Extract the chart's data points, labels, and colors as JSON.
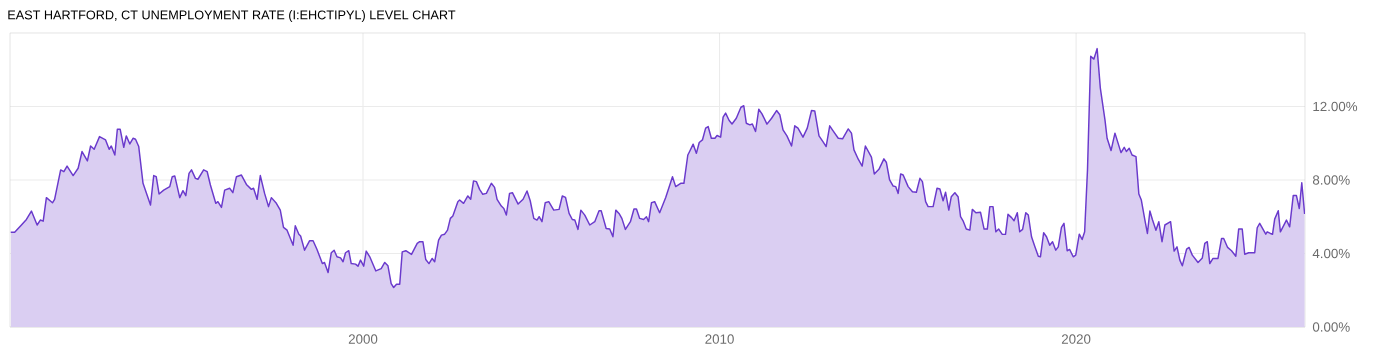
{
  "chart_data": {
    "type": "area",
    "title": "EAST HARTFORD, CT UNEMPLOYMENT RATE (I:EHCTIPYL) LEVEL CHART",
    "xlim": [
      1990.1,
      2026.42
    ],
    "xticks": [
      2000,
      2010,
      2020
    ],
    "ylim": [
      0,
      16
    ],
    "yticks": [
      {
        "value": 0,
        "label": "0.00%"
      },
      {
        "value": 4,
        "label": "4.00%"
      },
      {
        "value": 8,
        "label": "8.00%"
      },
      {
        "value": 12,
        "label": "12.00%"
      }
    ],
    "grid": true,
    "series": [
      {
        "color": "#6a3acc",
        "x": [
          1990.12,
          1990.23,
          1990.42,
          1990.56,
          1990.7,
          1990.86,
          1990.95,
          1991.03,
          1991.12,
          1991.29,
          1991.35,
          1991.52,
          1991.61,
          1991.7,
          1991.87,
          1992.01,
          1992.12,
          1992.27,
          1992.36,
          1992.46,
          1992.61,
          1992.78,
          1992.88,
          1992.94,
          1993.04,
          1993.11,
          1993.19,
          1993.29,
          1993.36,
          1993.46,
          1993.55,
          1993.62,
          1993.71,
          1993.83,
          1994.04,
          1994.13,
          1994.2,
          1994.28,
          1994.41,
          1994.58,
          1994.65,
          1994.72,
          1994.86,
          1994.95,
          1995.03,
          1995.12,
          1995.19,
          1995.3,
          1995.37,
          1995.53,
          1995.63,
          1995.72,
          1995.87,
          1995.93,
          1996.03,
          1996.12,
          1996.26,
          1996.35,
          1996.45,
          1996.59,
          1996.73,
          1996.87,
          1996.93,
          1997.03,
          1997.12,
          1997.24,
          1997.35,
          1997.43,
          1997.57,
          1997.68,
          1997.77,
          1997.87,
          1998.04,
          1998.1,
          1998.2,
          1998.25,
          1998.36,
          1998.5,
          1998.6,
          1998.71,
          1998.86,
          1998.92,
          1999.02,
          1999.11,
          1999.19,
          1999.27,
          1999.37,
          1999.44,
          1999.51,
          1999.6,
          1999.67,
          1999.79,
          1999.86,
          1999.93,
          2000.02,
          2000.09,
          2000.19,
          2000.36,
          2000.51,
          2000.61,
          2000.7,
          2000.79,
          2000.86,
          2000.94,
          2001.03,
          2001.1,
          2001.2,
          2001.36,
          2001.52,
          2001.59,
          2001.68,
          2001.76,
          2001.85,
          2001.94,
          2002.01,
          2002.12,
          2002.2,
          2002.29,
          2002.37,
          2002.45,
          2002.52,
          2002.66,
          2002.71,
          2002.82,
          2002.94,
          2003.02,
          2003.1,
          2003.18,
          2003.27,
          2003.36,
          2003.46,
          2003.6,
          2003.69,
          2003.76,
          2003.88,
          2003.95,
          2004.02,
          2004.11,
          2004.19,
          2004.35,
          2004.49,
          2004.6,
          2004.69,
          2004.79,
          2004.88,
          2004.94,
          2005.02,
          2005.11,
          2005.21,
          2005.35,
          2005.5,
          2005.59,
          2005.68,
          2005.78,
          2005.87,
          2005.94,
          2006.03,
          2006.11,
          2006.22,
          2006.36,
          2006.5,
          2006.62,
          2006.68,
          2006.82,
          2006.92,
          2007.01,
          2007.09,
          2007.18,
          2007.26,
          2007.36,
          2007.5,
          2007.6,
          2007.67,
          2007.76,
          2007.87,
          2007.95,
          2008.01,
          2008.09,
          2008.18,
          2008.32,
          2008.49,
          2008.68,
          2008.77,
          2008.91,
          2009.0,
          2009.11,
          2009.16,
          2009.26,
          2009.35,
          2009.43,
          2009.52,
          2009.61,
          2009.68,
          2009.77,
          2009.87,
          2009.93,
          2010.03,
          2010.1,
          2010.17,
          2010.27,
          2010.35,
          2010.47,
          2010.6,
          2010.68,
          2010.75,
          2010.85,
          2010.92,
          2011.01,
          2011.1,
          2011.19,
          2011.33,
          2011.46,
          2011.6,
          2011.69,
          2011.78,
          2011.89,
          2012.02,
          2012.11,
          2012.2,
          2012.34,
          2012.46,
          2012.58,
          2012.67,
          2012.79,
          2012.9,
          2012.99,
          2013.09,
          2013.18,
          2013.33,
          2013.45,
          2013.61,
          2013.7,
          2013.77,
          2013.89,
          2014.0,
          2014.09,
          2014.26,
          2014.34,
          2014.47,
          2014.61,
          2014.68,
          2014.77,
          2014.87,
          2014.94,
          2015.01,
          2015.08,
          2015.15,
          2015.29,
          2015.41,
          2015.52,
          2015.62,
          2015.69,
          2015.78,
          2015.85,
          2015.99,
          2016.1,
          2016.18,
          2016.27,
          2016.34,
          2016.43,
          2016.5,
          2016.6,
          2016.69,
          2016.76,
          2016.83,
          2016.92,
          2017.02,
          2017.09,
          2017.19,
          2017.32,
          2017.42,
          2017.51,
          2017.58,
          2017.67,
          2017.75,
          2017.83,
          2017.93,
          2018.02,
          2018.09,
          2018.19,
          2018.26,
          2018.35,
          2018.42,
          2018.5,
          2018.59,
          2018.66,
          2018.75,
          2018.84,
          2018.94,
          2019.0,
          2019.09,
          2019.17,
          2019.26,
          2019.34,
          2019.43,
          2019.5,
          2019.59,
          2019.66,
          2019.75,
          2019.82,
          2019.92,
          2019.99,
          2020.09,
          2020.17,
          2020.24,
          2020.32,
          2020.41,
          2020.5,
          2020.59,
          2020.68,
          2020.81,
          2020.87,
          2020.98,
          2021.09,
          2021.26,
          2021.35,
          2021.41,
          2021.49,
          2021.57,
          2021.68,
          2021.76,
          2021.83,
          2021.93,
          2022.0,
          2022.07,
          2022.14,
          2022.24,
          2022.32,
          2022.41,
          2022.49,
          2022.65,
          2022.75,
          2022.83,
          2022.91,
          2022.98,
          2023.1,
          2023.17,
          2023.26,
          2023.42,
          2023.54,
          2023.61,
          2023.68,
          2023.75,
          2023.84,
          2023.98,
          2024.08,
          2024.14,
          2024.25,
          2024.36,
          2024.48,
          2024.56,
          2024.66,
          2024.73,
          2024.84,
          2025.01,
          2025.08,
          2025.15,
          2025.32,
          2025.36,
          2025.45,
          2025.51,
          2025.57,
          2025.67,
          2025.73,
          2025.9,
          2025.99,
          2026.09,
          2026.18,
          2026.26,
          2026.33,
          2026.41
        ],
        "values": [
          5.15,
          5.15,
          5.55,
          5.85,
          6.31,
          5.55,
          5.82,
          5.76,
          7.04,
          6.76,
          6.95,
          8.55,
          8.45,
          8.76,
          8.24,
          8.64,
          9.55,
          9.04,
          9.85,
          9.67,
          10.36,
          10.18,
          9.67,
          9.85,
          9.36,
          10.76,
          10.76,
          9.78,
          10.4,
          9.96,
          10.27,
          10.22,
          9.82,
          7.82,
          6.64,
          8.24,
          8.18,
          7.24,
          7.45,
          7.64,
          8.18,
          8.22,
          7.04,
          7.42,
          7.15,
          8.36,
          8.55,
          8.09,
          8.04,
          8.55,
          8.45,
          7.73,
          6.73,
          6.82,
          6.51,
          7.45,
          7.55,
          7.31,
          8.18,
          8.27,
          7.76,
          7.49,
          7.55,
          6.95,
          8.24,
          7.27,
          6.55,
          7.04,
          6.73,
          6.36,
          5.42,
          5.27,
          4.45,
          5.51,
          5.05,
          4.95,
          4.18,
          4.69,
          4.69,
          4.22,
          3.45,
          3.51,
          2.96,
          4.04,
          4.18,
          3.82,
          3.76,
          3.55,
          4.04,
          4.15,
          3.45,
          3.42,
          3.31,
          3.64,
          3.31,
          4.13,
          3.82,
          3.05,
          3.18,
          3.51,
          3.33,
          2.36,
          2.15,
          2.33,
          2.33,
          4.09,
          4.15,
          3.95,
          4.55,
          4.64,
          4.64,
          3.67,
          3.45,
          3.73,
          3.55,
          4.73,
          5.0,
          5.05,
          5.27,
          5.91,
          6.04,
          6.82,
          6.91,
          6.73,
          7.13,
          6.95,
          7.95,
          7.91,
          7.49,
          7.22,
          7.27,
          7.82,
          7.6,
          6.95,
          6.58,
          6.45,
          6.09,
          7.27,
          7.31,
          6.69,
          6.95,
          7.4,
          6.87,
          5.91,
          5.82,
          6.0,
          5.73,
          6.76,
          6.82,
          6.36,
          6.4,
          7.13,
          7.05,
          6.18,
          5.85,
          5.82,
          5.31,
          6.36,
          6.09,
          5.55,
          5.73,
          6.33,
          6.33,
          5.36,
          5.33,
          4.91,
          6.36,
          6.18,
          5.91,
          5.31,
          5.73,
          6.42,
          6.42,
          5.91,
          5.85,
          6.0,
          5.73,
          6.76,
          6.82,
          6.22,
          7.05,
          8.18,
          7.64,
          7.82,
          7.82,
          9.36,
          9.55,
          9.95,
          9.45,
          10.04,
          10.18,
          10.82,
          10.91,
          10.27,
          10.27,
          10.42,
          10.33,
          11.42,
          11.64,
          11.24,
          11.05,
          11.36,
          11.96,
          12.04,
          11.09,
          11.0,
          11.05,
          10.64,
          11.85,
          11.6,
          11.04,
          11.36,
          11.78,
          11.55,
          10.73,
          10.4,
          9.85,
          10.95,
          10.82,
          10.33,
          10.82,
          11.78,
          11.76,
          10.4,
          10.09,
          9.82,
          10.95,
          10.69,
          10.27,
          10.24,
          10.78,
          10.55,
          9.64,
          9.13,
          8.76,
          9.85,
          9.24,
          8.33,
          8.58,
          9.15,
          8.95,
          8.0,
          7.67,
          7.64,
          7.27,
          8.33,
          8.27,
          7.64,
          7.36,
          7.33,
          8.09,
          7.91,
          6.82,
          6.55,
          6.55,
          7.55,
          7.51,
          6.87,
          7.33,
          6.36,
          7.09,
          7.31,
          7.09,
          6.0,
          5.78,
          5.33,
          5.27,
          6.4,
          6.22,
          6.24,
          5.33,
          5.33,
          6.55,
          6.55,
          5.18,
          5.33,
          5.04,
          5.04,
          6.13,
          5.95,
          5.78,
          6.22,
          5.18,
          5.31,
          6.22,
          6.09,
          4.91,
          4.4,
          3.85,
          3.82,
          5.13,
          4.91,
          4.45,
          4.64,
          4.18,
          4.36,
          5.42,
          5.64,
          4.15,
          4.22,
          3.82,
          3.91,
          5.05,
          4.76,
          5.18,
          8.55,
          14.73,
          14.58,
          15.15,
          13.0,
          11.27,
          10.27,
          9.6,
          10.55,
          9.49,
          9.78,
          9.55,
          9.73,
          9.36,
          9.27,
          7.24,
          6.91,
          5.82,
          5.09,
          6.31,
          5.85,
          5.27,
          5.73,
          4.64,
          5.55,
          5.73,
          4.13,
          4.36,
          3.64,
          3.33,
          4.24,
          4.33,
          3.91,
          3.51,
          3.76,
          4.55,
          4.64,
          3.45,
          3.73,
          3.73,
          4.82,
          4.82,
          4.33,
          4.15,
          3.85,
          5.33,
          5.33,
          3.96,
          4.04,
          4.04,
          5.4,
          5.64,
          5.05,
          5.18,
          5.09,
          5.05,
          5.87,
          6.33,
          5.18,
          5.82,
          5.45,
          7.15,
          7.15,
          6.45,
          7.85,
          6.15
        ]
      }
    ]
  }
}
